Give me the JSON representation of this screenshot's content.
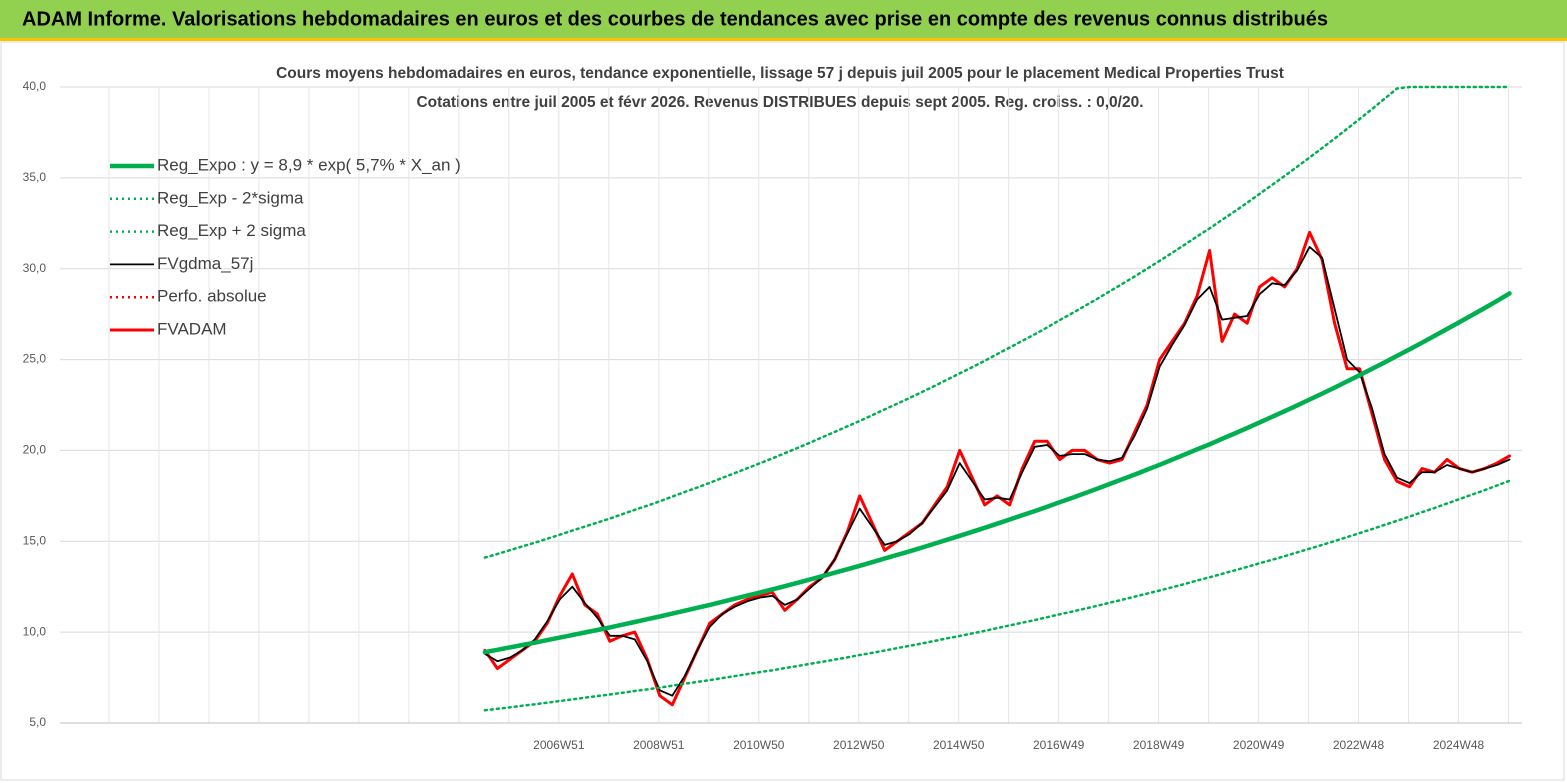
{
  "chart_data": {
    "type": "line",
    "title": "ADAM Informe. Valorisations hebdomadaires en euros et des courbes de tendances avec prise en compte des revenus connus distribués",
    "subtitle": [
      "Cours moyens hebdomadaires en euros, tendance exponentielle, lissage 57 j depuis juil 2005 pour le placement Medical Properties Trust",
      "Cotations entre juil 2005 et févr 2026. Revenus DISTRIBUES depuis sept 2005. Reg. croiss. : 0,0/20."
    ],
    "x": [
      2005.5,
      2005.75,
      2006,
      2006.25,
      2006.5,
      2006.75,
      2007,
      2007.25,
      2007.5,
      2007.75,
      2008,
      2008.25,
      2008.5,
      2008.75,
      2009,
      2009.25,
      2009.5,
      2009.75,
      2010,
      2010.25,
      2010.5,
      2010.75,
      2011,
      2011.25,
      2011.5,
      2011.75,
      2012,
      2012.25,
      2012.5,
      2012.75,
      2013,
      2013.25,
      2013.5,
      2013.75,
      2014,
      2014.25,
      2014.5,
      2014.75,
      2015,
      2015.25,
      2015.5,
      2015.75,
      2016,
      2016.25,
      2016.5,
      2016.75,
      2017,
      2017.25,
      2017.5,
      2017.75,
      2018,
      2018.25,
      2018.5,
      2018.75,
      2019,
      2019.25,
      2019.5,
      2019.75,
      2020,
      2020.25,
      2020.5,
      2020.75,
      2021,
      2021.25,
      2021.5,
      2021.75,
      2022,
      2022.25,
      2022.5,
      2022.75,
      2023,
      2023.25,
      2023.5,
      2023.75,
      2024,
      2024.25,
      2024.5,
      2024.75,
      2025,
      2025.25,
      2025.5,
      2025.75,
      2026
    ],
    "xlim": [
      1997,
      2026.25
    ],
    "xticks": [
      {
        "value": 2006.98,
        "label": "2006W51"
      },
      {
        "value": 2008.98,
        "label": "2008W51"
      },
      {
        "value": 2010.98,
        "label": "2010W50"
      },
      {
        "value": 2012.98,
        "label": "2012W50"
      },
      {
        "value": 2014.98,
        "label": "2014W50"
      },
      {
        "value": 2016.98,
        "label": "2016W49"
      },
      {
        "value": 2018.98,
        "label": "2018W49"
      },
      {
        "value": 2020.98,
        "label": "2020W49"
      },
      {
        "value": 2022.98,
        "label": "2022W48"
      },
      {
        "value": 2024.98,
        "label": "2024W48"
      }
    ],
    "ylim": [
      5,
      40
    ],
    "yticks": [
      {
        "value": 5,
        "label": "5,0"
      },
      {
        "value": 10,
        "label": "10,0"
      },
      {
        "value": 15,
        "label": "15,0"
      },
      {
        "value": 20,
        "label": "20,0"
      },
      {
        "value": 25,
        "label": "25,0"
      },
      {
        "value": 30,
        "label": "30,0"
      },
      {
        "value": 35,
        "label": "35,0"
      },
      {
        "value": 40,
        "label": "40,0"
      }
    ],
    "grid": true,
    "legend": "upper left",
    "series": [
      {
        "name": "Reg_Expo : y = 8,9 * exp( 5,7% *  X_an )",
        "color": "#00b050",
        "style": "thick",
        "values": [
          8.9,
          9.03,
          9.16,
          9.29,
          9.42,
          9.56,
          9.7,
          9.84,
          9.98,
          10.12,
          10.26,
          10.41,
          10.56,
          10.71,
          10.86,
          11.02,
          11.18,
          11.34,
          11.5,
          11.67,
          11.84,
          12.01,
          12.18,
          12.35,
          12.53,
          12.71,
          12.89,
          13.08,
          13.27,
          13.46,
          13.65,
          13.85,
          14.05,
          14.25,
          14.45,
          14.66,
          14.87,
          15.09,
          15.3,
          15.52,
          15.74,
          15.97,
          16.2,
          16.43,
          16.66,
          16.9,
          17.15,
          17.39,
          17.64,
          17.89,
          18.15,
          18.41,
          18.67,
          18.94,
          19.21,
          19.49,
          19.77,
          20.06,
          20.34,
          20.64,
          20.93,
          21.23,
          21.54,
          21.85,
          22.16,
          22.48,
          22.8,
          23.13,
          23.46,
          23.8,
          24.14,
          24.49,
          24.84,
          25.2,
          25.56,
          25.93,
          26.3,
          26.68,
          27.06,
          27.45,
          27.83,
          28.23,
          28.64
        ]
      },
      {
        "name": "Reg_Exp - 2*sigma",
        "color": "#00b050",
        "style": "dotted",
        "values": [
          5.7,
          5.78,
          5.86,
          5.95,
          6.03,
          6.12,
          6.21,
          6.3,
          6.39,
          6.48,
          6.57,
          6.66,
          6.76,
          6.85,
          6.95,
          7.05,
          7.16,
          7.26,
          7.36,
          7.47,
          7.58,
          7.69,
          7.8,
          7.9,
          8.02,
          8.13,
          8.25,
          8.37,
          8.49,
          8.61,
          8.74,
          8.86,
          8.99,
          9.12,
          9.25,
          9.38,
          9.52,
          9.66,
          9.79,
          9.93,
          10.07,
          10.22,
          10.37,
          10.52,
          10.66,
          10.82,
          10.98,
          11.13,
          11.29,
          11.45,
          11.62,
          11.78,
          11.95,
          12.12,
          12.29,
          12.47,
          12.65,
          12.84,
          13.02,
          13.21,
          13.4,
          13.59,
          13.79,
          13.98,
          14.18,
          14.39,
          14.59,
          14.8,
          15.01,
          15.23,
          15.45,
          15.67,
          15.9,
          16.13,
          16.36,
          16.6,
          16.83,
          17.08,
          17.32,
          17.57,
          17.81,
          18.07,
          18.33
        ]
      },
      {
        "name": "Reg_Exp + 2 sigma",
        "color": "#00b050",
        "style": "dotted",
        "values": [
          14.1,
          14.3,
          14.51,
          14.72,
          14.92,
          15.14,
          15.36,
          15.59,
          15.81,
          16.03,
          16.25,
          16.49,
          16.73,
          16.96,
          17.2,
          17.46,
          17.71,
          17.96,
          18.22,
          18.49,
          18.75,
          19.02,
          19.29,
          19.56,
          19.85,
          20.13,
          20.42,
          20.72,
          21.02,
          21.32,
          21.62,
          21.94,
          22.26,
          22.57,
          22.89,
          23.22,
          23.55,
          23.9,
          24.24,
          24.58,
          24.93,
          25.3,
          25.66,
          26.03,
          26.39,
          26.77,
          27.17,
          27.55,
          27.94,
          28.34,
          28.75,
          29.16,
          29.57,
          30,
          30.43,
          30.87,
          31.32,
          31.78,
          32.22,
          32.69,
          33.15,
          33.63,
          34.12,
          34.61,
          35.1,
          35.61,
          36.12,
          36.64,
          37.16,
          37.7,
          38.24,
          38.79,
          39.35,
          39.92,
          40,
          40,
          40,
          40,
          40,
          40,
          40,
          40,
          40
        ]
      },
      {
        "name": "FVgdma_57j",
        "color": "#000000",
        "style": "thin",
        "values": [
          8.8,
          8.4,
          8.6,
          9.0,
          9.6,
          10.6,
          11.8,
          12.5,
          11.6,
          10.8,
          9.8,
          9.8,
          9.6,
          8.4,
          6.8,
          6.5,
          7.6,
          9.0,
          10.3,
          11.0,
          11.4,
          11.7,
          11.9,
          12.0,
          11.5,
          11.8,
          12.4,
          13.0,
          14.0,
          15.4,
          16.8,
          15.8,
          14.8,
          15.0,
          15.4,
          16.0,
          16.9,
          17.8,
          19.3,
          18.3,
          17.3,
          17.4,
          17.3,
          18.8,
          20.2,
          20.3,
          19.7,
          19.8,
          19.8,
          19.5,
          19.4,
          19.6,
          20.8,
          22.3,
          24.6,
          25.8,
          26.9,
          28.3,
          29.0,
          27.2,
          27.3,
          27.4,
          28.6,
          29.2,
          29.1,
          29.9,
          31.2,
          30.6,
          27.8,
          25.0,
          24.3,
          22.3,
          19.8,
          18.5,
          18.2,
          18.8,
          18.8,
          19.2,
          19.0,
          18.8,
          19.0,
          19.2,
          19.5
        ]
      },
      {
        "name": "Perfo. absolue",
        "color": "#ff0000",
        "style": "dotted",
        "values": [
          9.0,
          8.0,
          8.5,
          9.0,
          9.5,
          10.5,
          12.0,
          13.2,
          11.5,
          11.0,
          9.5,
          9.8,
          10.0,
          8.5,
          6.5,
          6.0,
          7.5,
          9.0,
          10.5,
          11.0,
          11.5,
          11.8,
          12.0,
          12.2,
          11.2,
          11.8,
          12.5,
          13.0,
          14.0,
          15.5,
          17.5,
          16.0,
          14.5,
          15.0,
          15.5,
          16.0,
          17.0,
          18.0,
          20.0,
          18.5,
          17.0,
          17.5,
          17.0,
          19.0,
          20.5,
          20.5,
          19.5,
          20.0,
          20.0,
          19.5,
          19.3,
          19.5,
          21.0,
          22.5,
          25.0,
          26.0,
          27.0,
          28.5,
          31.0,
          26.0,
          27.5,
          27.0,
          29.0,
          29.5,
          29.0,
          30.0,
          32.0,
          30.5,
          27.0,
          24.5,
          24.5,
          22.0,
          19.5,
          18.3,
          18.0,
          19.0,
          18.8,
          19.5,
          19.0,
          18.8,
          19.0,
          19.3,
          19.7
        ]
      },
      {
        "name": "FVADAM",
        "color": "#ff0000",
        "style": "solid",
        "values": [
          9.0,
          8.0,
          8.5,
          9.0,
          9.5,
          10.5,
          12.0,
          13.2,
          11.5,
          11.0,
          9.5,
          9.8,
          10.0,
          8.5,
          6.5,
          6.0,
          7.5,
          9.0,
          10.5,
          11.0,
          11.5,
          11.8,
          12.0,
          12.2,
          11.2,
          11.8,
          12.5,
          13.0,
          14.0,
          15.5,
          17.5,
          16.0,
          14.5,
          15.0,
          15.5,
          16.0,
          17.0,
          18.0,
          20.0,
          18.5,
          17.0,
          17.5,
          17.0,
          19.0,
          20.5,
          20.5,
          19.5,
          20.0,
          20.0,
          19.5,
          19.3,
          19.5,
          21.0,
          22.5,
          25.0,
          26.0,
          27.0,
          28.5,
          31.0,
          26.0,
          27.5,
          27.0,
          29.0,
          29.5,
          29.0,
          30.0,
          32.0,
          30.5,
          27.0,
          24.5,
          24.5,
          22.0,
          19.5,
          18.3,
          18.0,
          19.0,
          18.8,
          19.5,
          19.0,
          18.8,
          19.0,
          19.3,
          19.7
        ]
      }
    ]
  }
}
